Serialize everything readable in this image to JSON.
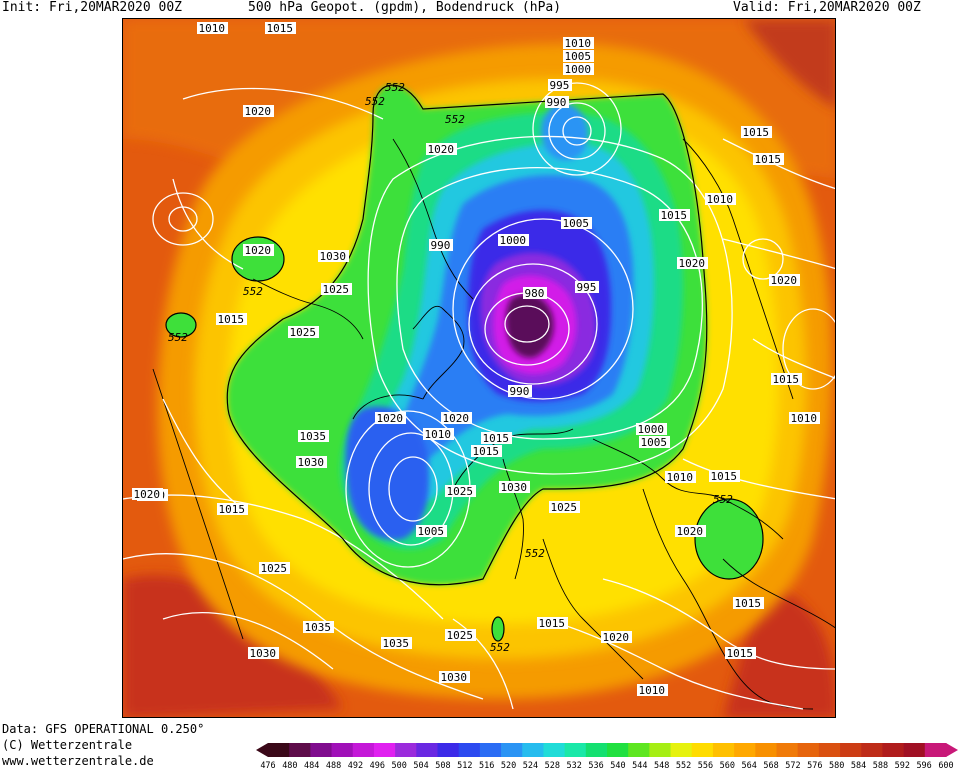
{
  "header": {
    "init": "Init: Fri,20MAR2020 00Z",
    "title": "500 hPa Geopot. (gpdm), Bodendruck (hPa)",
    "valid": "Valid: Fri,20MAR2020 00Z"
  },
  "footer": {
    "data": "Data: GFS OPERATIONAL 0.250°",
    "copyright": "(C) Wetterzentrale",
    "website": "www.wetterzentrale.de"
  },
  "colorbar": {
    "labels": [
      "476",
      "480",
      "484",
      "488",
      "492",
      "496",
      "500",
      "504",
      "508",
      "512",
      "516",
      "520",
      "524",
      "528",
      "532",
      "536",
      "540",
      "544",
      "548",
      "552",
      "556",
      "560",
      "564",
      "568",
      "572",
      "576",
      "580",
      "584",
      "588",
      "592",
      "596",
      "600"
    ],
    "colors": [
      "#3a0818",
      "#5e0c4a",
      "#800c8e",
      "#a010b8",
      "#c418d8",
      "#e020f0",
      "#9b2bdc",
      "#6a28e2",
      "#3c2ae8",
      "#2c4af0",
      "#2a6cf4",
      "#2a94f4",
      "#26bcee",
      "#20dcd8",
      "#1ae8a8",
      "#14e070",
      "#20e040",
      "#5ee620",
      "#a6ee14",
      "#e6f20e",
      "#ffdc00",
      "#ffc000",
      "#ffa800",
      "#f89000",
      "#f07a08",
      "#e6640c",
      "#da5010",
      "#cc3c14",
      "#be2c18",
      "#b01c1c",
      "#a01024",
      "#c81878"
    ]
  },
  "map": {
    "height_labels": [
      "552",
      "552",
      "552",
      "552",
      "552",
      "552",
      "552",
      "552"
    ],
    "pressure_labels": [
      "1010",
      "1015",
      "1010",
      "1005",
      "1000",
      "995",
      "990",
      "1020",
      "1015",
      "1020",
      "1010",
      "1015",
      "1005",
      "1000",
      "990",
      "1020",
      "1030",
      "1025",
      "1015",
      "1025",
      "1020",
      "980",
      "995",
      "1015",
      "990",
      "1010",
      "1035",
      "1020",
      "1015",
      "1020",
      "1010",
      "1030",
      "1015",
      "1005",
      "1000",
      "1030",
      "1025",
      "1005",
      "1010",
      "1015",
      "1020",
      "1010",
      "1020",
      "1015",
      "1025",
      "1015",
      "1035",
      "1025",
      "1035",
      "1030",
      "1030",
      "1015",
      "1020",
      "1015",
      "1010",
      "1025",
      "1020",
      "1015"
    ]
  }
}
